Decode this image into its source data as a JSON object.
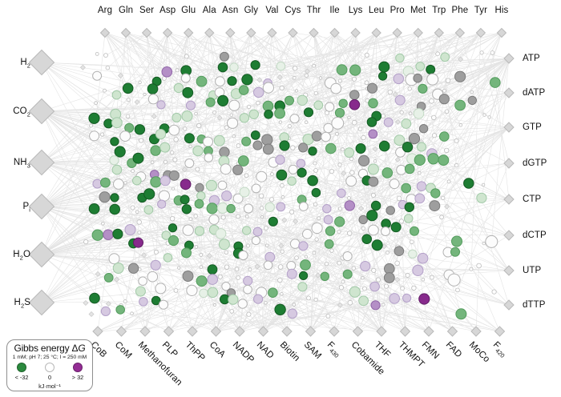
{
  "axes": {
    "top": {
      "items": [
        {
          "label": "Arg"
        },
        {
          "label": "Gln"
        },
        {
          "label": "Ser"
        },
        {
          "label": "Asp"
        },
        {
          "label": "Glu"
        },
        {
          "label": "Ala"
        },
        {
          "label": "Asn"
        },
        {
          "label": "Gly"
        },
        {
          "label": "Val"
        },
        {
          "label": "Cys"
        },
        {
          "label": "Thr"
        },
        {
          "label": "Ile"
        },
        {
          "label": "Lys"
        },
        {
          "label": "Leu"
        },
        {
          "label": "Pro"
        },
        {
          "label": "Met"
        },
        {
          "label": "Trp"
        },
        {
          "label": "Phe"
        },
        {
          "label": "Tyr"
        },
        {
          "label": "His"
        }
      ]
    },
    "left": {
      "items": [
        {
          "pre": "H",
          "sub": "2",
          "post": ""
        },
        {
          "pre": "CO",
          "sub": "2",
          "post": ""
        },
        {
          "pre": "NH",
          "sub": "3",
          "post": ""
        },
        {
          "pre": "P",
          "sub": "i",
          "post": ""
        },
        {
          "pre": "H",
          "sub": "2",
          "post": "O"
        },
        {
          "pre": "H",
          "sub": "2",
          "post": "S"
        }
      ]
    },
    "right": {
      "items": [
        {
          "label": "ATP"
        },
        {
          "label": "dATP"
        },
        {
          "label": "GTP"
        },
        {
          "label": "dGTP"
        },
        {
          "label": "CTP"
        },
        {
          "label": "dCTP"
        },
        {
          "label": "UTP"
        },
        {
          "label": "dTTP"
        }
      ]
    },
    "bottom": {
      "items": [
        {
          "pre": "CoB",
          "sub": ""
        },
        {
          "pre": "CoM",
          "sub": ""
        },
        {
          "pre": "Methanofuran",
          "sub": ""
        },
        {
          "pre": "PLP",
          "sub": ""
        },
        {
          "pre": "ThPP",
          "sub": ""
        },
        {
          "pre": "CoA",
          "sub": ""
        },
        {
          "pre": "NADP",
          "sub": ""
        },
        {
          "pre": "NAD",
          "sub": ""
        },
        {
          "pre": "Biotin",
          "sub": ""
        },
        {
          "pre": "SAM",
          "sub": ""
        },
        {
          "pre": "F",
          "sub": "430"
        },
        {
          "pre": "Cobamide",
          "sub": ""
        },
        {
          "pre": "THF",
          "sub": ""
        },
        {
          "pre": "THMPT",
          "sub": ""
        },
        {
          "pre": "FMN",
          "sub": ""
        },
        {
          "pre": "FAD",
          "sub": ""
        },
        {
          "pre": "MoCo",
          "sub": ""
        },
        {
          "pre": "F",
          "sub": "420"
        }
      ]
    }
  },
  "legend": {
    "title_pre": "Gibbs energy Δ",
    "title_g": "G",
    "conditions": "1 mM; pH 7; 25 °C; I = 250 mM",
    "swatches": [
      {
        "label": "< -32",
        "color": "#2b8a3e"
      },
      {
        "label": "0",
        "color": "#ffffff"
      },
      {
        "label": "> 32",
        "color": "#942d95"
      }
    ],
    "unit": "kJ·mol⁻¹"
  },
  "network": {
    "palette": {
      "dark_green": {
        "fill": "#1e7d33",
        "stroke": "#145a23"
      },
      "mid_green": {
        "fill": "#74b57c",
        "stroke": "#539c5d"
      },
      "light_green": {
        "fill": "#cfe5cf",
        "stroke": "#a2c9a8"
      },
      "pale_green": {
        "fill": "#e7f1e7",
        "stroke": "#c2d8c4"
      },
      "white": {
        "fill": "#fcfcfc",
        "stroke": "#b2b2b2"
      },
      "light_purple": {
        "fill": "#d6c9e1",
        "stroke": "#b3a0c8"
      },
      "mid_purple": {
        "fill": "#b48fc6",
        "stroke": "#9166a8"
      },
      "dark_purple": {
        "fill": "#872a8c",
        "stroke": "#611e66"
      },
      "gray": {
        "fill": "#9e9e9e",
        "stroke": "#7c7c7c"
      }
    },
    "small_node": {
      "fill": "#fdfdfd",
      "stroke": "#bdbdbd"
    },
    "tiny_diamond": {
      "fill": "#e4e4e4",
      "stroke": "#c8c8c8"
    },
    "anchor_style": {
      "fill": "#d7d7d7",
      "stroke": "#b9b9b9"
    },
    "edge": {
      "color": "#c9c9c9",
      "opacity": 0.5,
      "width": 0.6
    }
  }
}
